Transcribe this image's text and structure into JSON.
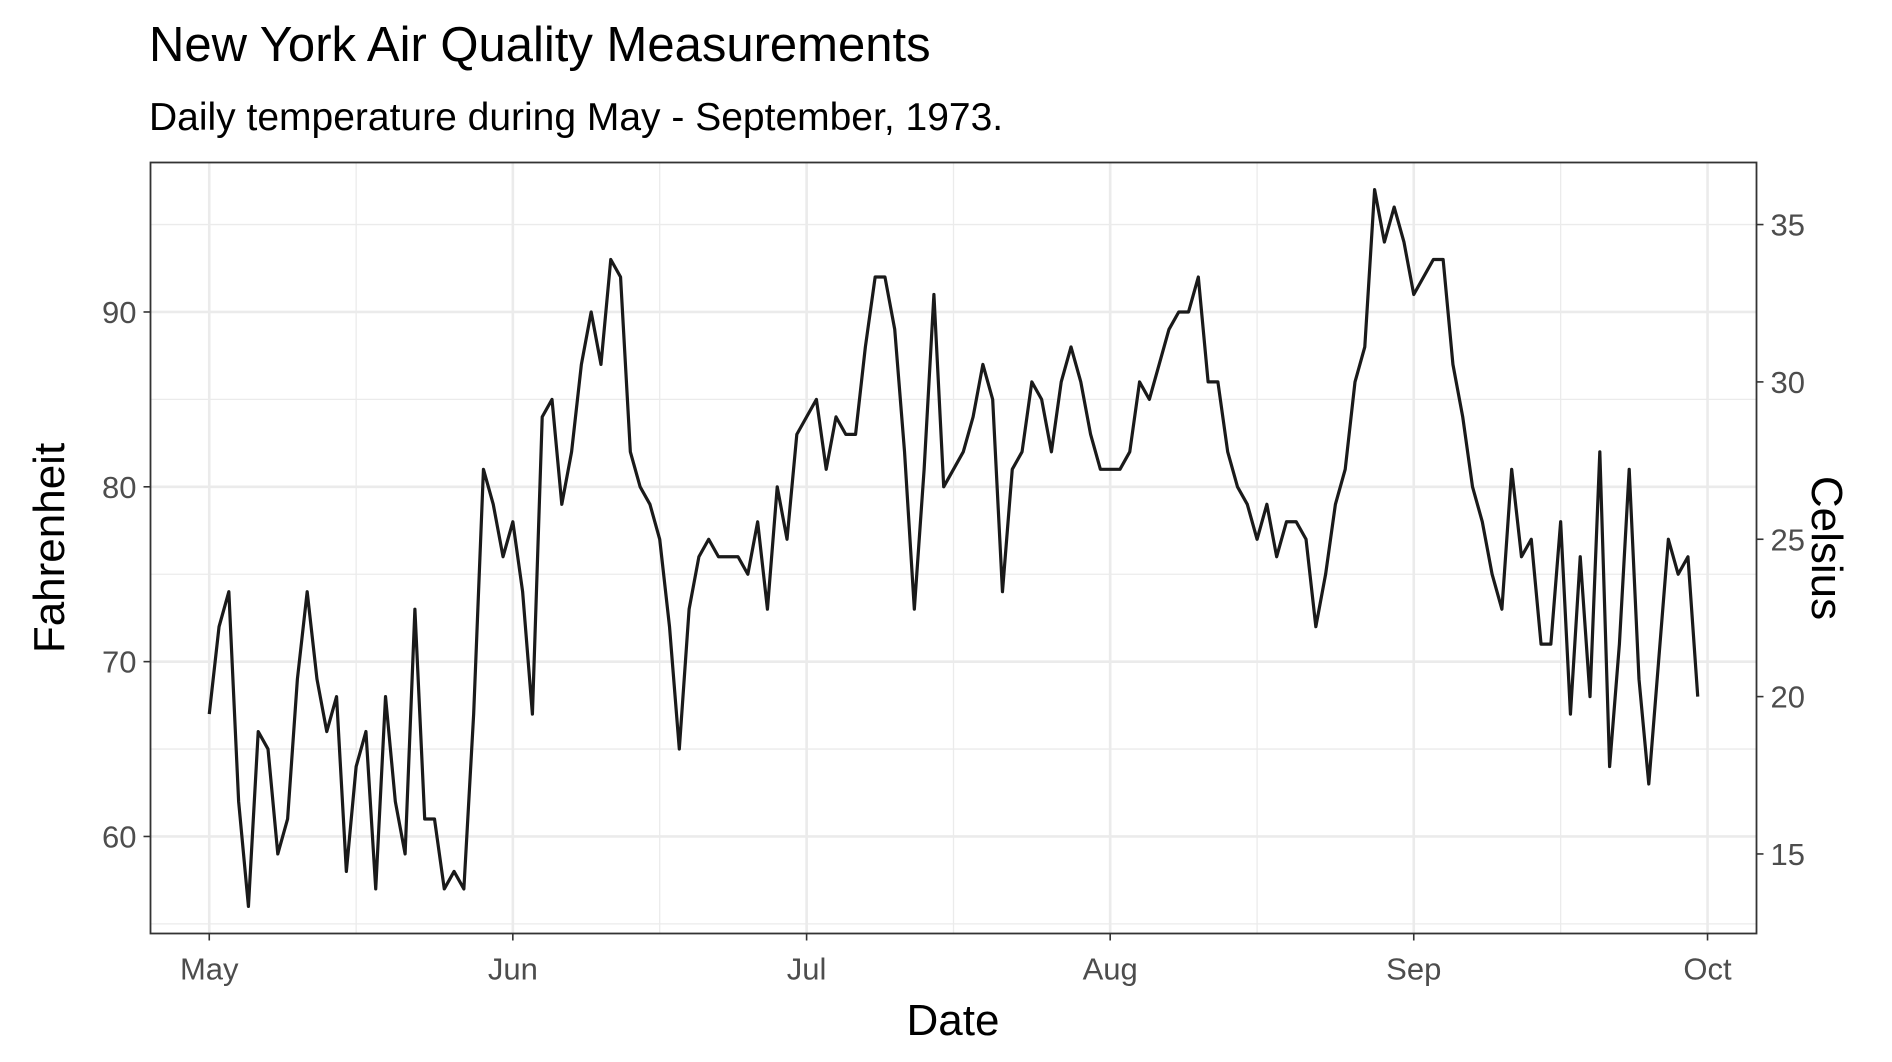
{
  "chart_data": {
    "type": "line",
    "title": "New York Air Quality Measurements",
    "subtitle": "Daily temperature during May - September, 1973.",
    "xlabel": "Date",
    "ylabel": "Fahrenheit",
    "y2label": "Celsius",
    "x_ticks": [
      "May",
      "Jun",
      "Jul",
      "Aug",
      "Sep",
      "Oct"
    ],
    "y_ticks": [
      60,
      70,
      80,
      90
    ],
    "y2_ticks": [
      15,
      20,
      25,
      30,
      35
    ],
    "xlim": [
      "1973-04-25",
      "1973-10-06"
    ],
    "ylim": [
      54.45,
      98.55
    ],
    "grid": true,
    "series": [
      {
        "start_date": "1973-05-01",
        "values": [
          67,
          72,
          74,
          62,
          56,
          66,
          65,
          59,
          61,
          69,
          74,
          69,
          66,
          68,
          58,
          64,
          66,
          57,
          68,
          62,
          59,
          73,
          61,
          61,
          57,
          58,
          57,
          67,
          81,
          79,
          76,
          78,
          74,
          67,
          84,
          85,
          79,
          82,
          87,
          90,
          87,
          93,
          92,
          82,
          80,
          79,
          77,
          72,
          65,
          73,
          76,
          77,
          76,
          76,
          76,
          75,
          78,
          73,
          80,
          77,
          83,
          84,
          85,
          81,
          84,
          83,
          83,
          88,
          92,
          92,
          89,
          82,
          73,
          81,
          91,
          80,
          81,
          82,
          84,
          87,
          85,
          74,
          81,
          82,
          86,
          85,
          82,
          86,
          88,
          86,
          83,
          81,
          81,
          81,
          82,
          86,
          85,
          87,
          89,
          90,
          90,
          92,
          86,
          86,
          82,
          80,
          79,
          77,
          79,
          76,
          78,
          78,
          77,
          72,
          75,
          79,
          81,
          86,
          88,
          97,
          94,
          96,
          94,
          91,
          92,
          93,
          93,
          87,
          84,
          80,
          78,
          75,
          73,
          81,
          76,
          77,
          71,
          71,
          78,
          67,
          76,
          68,
          82,
          64,
          71,
          81,
          69,
          63,
          70,
          77,
          75,
          76,
          68
        ]
      }
    ]
  }
}
